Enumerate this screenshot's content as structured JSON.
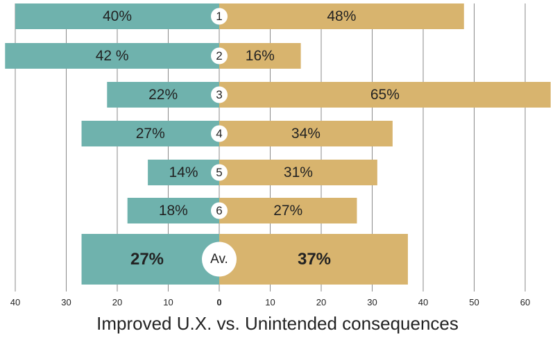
{
  "chart_data": {
    "type": "bar",
    "orientation": "horizontal-diverging",
    "title": "",
    "xlabel": "Improved U.X. vs. Unintended consequences",
    "ylabel": "",
    "left_axis_ticks": [
      "40",
      "30",
      "20",
      "10"
    ],
    "center_tick": "0",
    "right_axis_ticks": [
      "10",
      "20",
      "30",
      "40",
      "50",
      "60"
    ],
    "xlim_left": [
      0,
      40
    ],
    "xlim_right": [
      0,
      60
    ],
    "grid": true,
    "categories": [
      "1",
      "2",
      "3",
      "4",
      "5",
      "6",
      "Av."
    ],
    "series": [
      {
        "name": "Improved U.X.",
        "side": "left",
        "color": "#6fb2ad",
        "values": [
          40,
          42,
          22,
          27,
          14,
          18,
          27
        ],
        "labels": [
          "40%",
          "42 %",
          "22%",
          "27%",
          "14%",
          "18%",
          "27%"
        ]
      },
      {
        "name": "Unintended consequences",
        "side": "right",
        "color": "#d8b46e",
        "values": [
          48,
          16,
          65,
          34,
          31,
          27,
          37
        ],
        "labels": [
          "48%",
          "16%",
          "65%",
          "34%",
          "31%",
          "27%",
          "37%"
        ]
      }
    ]
  }
}
